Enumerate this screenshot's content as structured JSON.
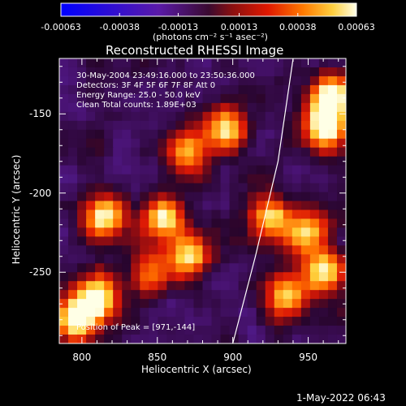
{
  "colorbar": {
    "ticks": [
      "-0.00063",
      "-0.00038",
      "-0.00013",
      "0.00013",
      "0.00038",
      "0.00063"
    ],
    "tick_values": [
      -0.00063,
      -0.00038,
      -0.00013,
      0.00013,
      0.00038,
      0.00063
    ],
    "unit_label": "(photons cm⁻² s⁻¹ asec⁻²)",
    "range": [
      -0.00063,
      0.00063
    ]
  },
  "plot": {
    "title": "Reconstructed RHESSI Image",
    "xlabel": "Heliocentric X (arcsec)",
    "ylabel": "Heliocentric Y (arcsec)",
    "x_ticks": [
      "800",
      "850",
      "900",
      "950"
    ],
    "y_ticks": [
      "-150",
      "-200",
      "-250"
    ],
    "info_lines": [
      "30-May-2004 23:49:16.000 to 23:50:36.000",
      "Detectors: 3F 4F 5F 6F 7F 8F Att 0",
      "Energy Range: 25.0 - 50.0 keV",
      "Clean     Total counts: 1.89E+03"
    ],
    "peak_text": "Position of Peak = [971,-144]"
  },
  "footer": {
    "timestamp": "1-May-2022 06:43"
  },
  "chart_data": {
    "type": "heatmap",
    "title": "Reconstructed RHESSI Image",
    "xlabel": "Heliocentric X (arcsec)",
    "ylabel": "Heliocentric Y (arcsec)",
    "xlim": [
      785,
      975
    ],
    "ylim": [
      -295,
      -115
    ],
    "colorbar_range": [
      -0.00063,
      0.00063
    ],
    "peak": [
      971,
      -144
    ],
    "limb_curve": {
      "x": [
        900,
        915,
        930,
        940
      ],
      "y": [
        -295,
        -240,
        -180,
        -115
      ]
    },
    "bright_regions": [
      {
        "x": 795,
        "y": -280,
        "level": 0.95
      },
      {
        "x": 810,
        "y": -265,
        "level": 0.9
      },
      {
        "x": 965,
        "y": -140,
        "level": 1.0
      },
      {
        "x": 960,
        "y": -160,
        "level": 0.85
      },
      {
        "x": 895,
        "y": -160,
        "level": 0.75
      },
      {
        "x": 870,
        "y": -175,
        "level": 0.7
      },
      {
        "x": 815,
        "y": -215,
        "level": 0.8
      },
      {
        "x": 855,
        "y": -215,
        "level": 0.75
      },
      {
        "x": 870,
        "y": -240,
        "level": 0.8
      },
      {
        "x": 925,
        "y": -215,
        "level": 0.7
      },
      {
        "x": 950,
        "y": -225,
        "level": 0.75
      },
      {
        "x": 960,
        "y": -250,
        "level": 0.85
      },
      {
        "x": 935,
        "y": -265,
        "level": 0.7
      },
      {
        "x": 845,
        "y": -250,
        "level": 0.6
      }
    ]
  }
}
